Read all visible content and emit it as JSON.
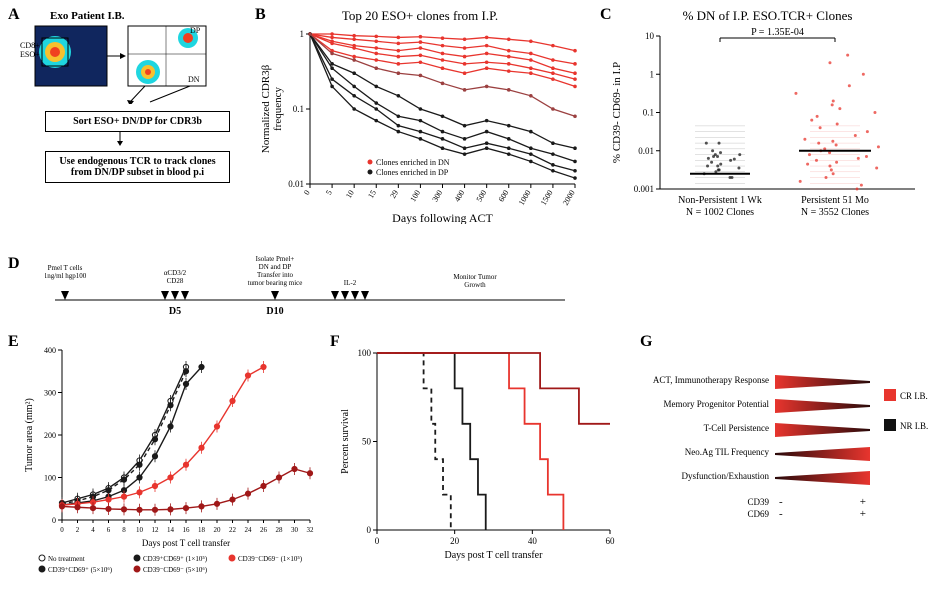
{
  "panelA": {
    "label": "A",
    "header": "Exo Patient I.B.",
    "flow_labels": {
      "cd8_eso": "CD8+\nESO+",
      "dp": "DP",
      "dn": "DN"
    },
    "box1": "Sort ESO+ DN/DP for CDR3b",
    "box2": "Use endogenous TCR to track clones from DN/DP subset in blood p.i",
    "flow_bg": "#061a4a",
    "flow_hot": "#f04020",
    "flow_warm": "#f7c02e",
    "flow_cyan": "#1fd6e0"
  },
  "panelB": {
    "label": "B",
    "title": "Top 20 ESO+ clones from I.P.",
    "ylabel": "Normalized CDR3β\nfrequency",
    "xlabel": "Days following ACT",
    "legend": {
      "dn": "Clones enriched in DN",
      "dp": "Clones enriched in DP"
    },
    "color_dn": "#e8352e",
    "color_dp": "#1a1a1a",
    "color_mix": "#9b4040",
    "xticks": [
      "0",
      "5",
      "10",
      "15",
      "29",
      "100",
      "300",
      "400",
      "500",
      "600",
      "1000",
      "1500",
      "2000"
    ],
    "yticks": [
      "1",
      "0.1",
      "0.01"
    ],
    "dn_lines": [
      [
        1,
        1,
        0.95,
        0.93,
        0.9,
        0.92,
        0.88,
        0.85,
        0.9,
        0.85,
        0.8,
        0.7,
        0.6
      ],
      [
        1,
        0.9,
        0.85,
        0.8,
        0.75,
        0.78,
        0.7,
        0.65,
        0.7,
        0.6,
        0.55,
        0.45,
        0.4
      ],
      [
        1,
        0.8,
        0.7,
        0.65,
        0.6,
        0.65,
        0.55,
        0.5,
        0.55,
        0.5,
        0.45,
        0.35,
        0.3
      ],
      [
        1,
        0.75,
        0.65,
        0.55,
        0.5,
        0.52,
        0.45,
        0.4,
        0.42,
        0.4,
        0.35,
        0.3,
        0.25
      ],
      [
        1,
        0.6,
        0.5,
        0.45,
        0.4,
        0.42,
        0.35,
        0.3,
        0.35,
        0.32,
        0.3,
        0.25,
        0.2
      ]
    ],
    "dp_lines": [
      [
        1,
        0.4,
        0.3,
        0.2,
        0.15,
        0.1,
        0.08,
        0.06,
        0.07,
        0.06,
        0.05,
        0.035,
        0.03
      ],
      [
        1,
        0.35,
        0.2,
        0.12,
        0.08,
        0.07,
        0.05,
        0.04,
        0.05,
        0.04,
        0.03,
        0.025,
        0.02
      ],
      [
        1,
        0.25,
        0.15,
        0.1,
        0.06,
        0.05,
        0.04,
        0.03,
        0.035,
        0.03,
        0.025,
        0.018,
        0.015
      ],
      [
        1,
        0.2,
        0.1,
        0.07,
        0.05,
        0.04,
        0.03,
        0.025,
        0.03,
        0.025,
        0.02,
        0.015,
        0.012
      ]
    ],
    "mix_lines": [
      [
        1,
        0.55,
        0.45,
        0.35,
        0.3,
        0.28,
        0.22,
        0.18,
        0.2,
        0.18,
        0.15,
        0.1,
        0.08
      ]
    ]
  },
  "panelC": {
    "label": "C",
    "title": "% DN of I.P. ESO.TCR+ Clones",
    "ylabel": "% CD39- CD69- in I.P",
    "pval": "P = 1.35E-04",
    "cat1": "Non-Persistent 1 Wk",
    "cat1_n": "N = 1002 Clones",
    "cat2": "Persistent 51 Mo",
    "cat2_n": "N = 3552 Clones",
    "yticks": [
      "10",
      "1",
      "0.1",
      "0.01",
      "0.001"
    ],
    "c1_color": "#1a1a1a",
    "c2_color": "#e8352e",
    "c1_strip": [
      -2.7,
      -2.7,
      -2.6,
      -2.55,
      -2.5,
      -2.5,
      -2.45,
      -2.4,
      -2.4,
      -2.35,
      -2.3,
      -2.25,
      -2.22,
      -2.2,
      -2.15,
      -2.15,
      -2.1,
      -2.1,
      -2.05,
      -2.0,
      -1.8,
      -1.8
    ],
    "c2_strip": [
      -3,
      -2.9,
      -2.8,
      -2.7,
      -2.6,
      -2.5,
      -2.45,
      -2.4,
      -2.35,
      -2.3,
      -2.25,
      -2.2,
      -2.15,
      -2.1,
      -2.05,
      -2,
      -1.95,
      -1.9,
      -1.85,
      -1.8,
      -1.75,
      -1.7,
      -1.6,
      -1.5,
      -1.4,
      -1.3,
      -1.2,
      -1.1,
      -1,
      -0.9,
      -0.8,
      -0.7,
      -0.5,
      -0.3,
      0,
      0.3,
      0.5
    ],
    "c1_median": -2.6,
    "c2_median": -2.0
  },
  "panelD": {
    "label": "D",
    "left": "Pmel T cells\n1ng/ml hgp100",
    "mid1": "αCD3/2\nCD28",
    "mid2": "Isolate Pmel+\nDN and DP\nTransfer into\ntumor bearing mice",
    "il2": "IL-2",
    "right": "Monitor Tumor\nGrowth",
    "d5": "D5",
    "d10": "D10"
  },
  "panelE": {
    "label": "E",
    "ylabel": "Tumor area (mm²)",
    "xlabel": "Days post T cell transfer",
    "yticks": [
      "0",
      "100",
      "200",
      "300",
      "400"
    ],
    "xticks": [
      "0",
      "2",
      "4",
      "6",
      "8",
      "10",
      "12",
      "14",
      "16",
      "18",
      "20",
      "22",
      "24",
      "26",
      "28",
      "30",
      "32"
    ],
    "series": {
      "no_tx": {
        "label": "No treatment",
        "color": "#1a1a1a",
        "dash": false,
        "fill": "#ffffff",
        "y": [
          40,
          50,
          60,
          75,
          100,
          140,
          200,
          280,
          360
        ]
      },
      "dp_5e6": {
        "label": "CD39⁺CD69⁺ (5×10⁶)",
        "color": "#1a1a1a",
        "dash": false,
        "fill": "#1a1a1a",
        "y": [
          35,
          40,
          45,
          55,
          70,
          100,
          150,
          220,
          320,
          360
        ]
      },
      "dp_1e5": {
        "label": "CD39⁺CD69⁺ (1×10⁵)",
        "color": "#1a1a1a",
        "dash": true,
        "fill": "#1a1a1a",
        "y": [
          38,
          45,
          55,
          70,
          95,
          130,
          190,
          270,
          350
        ]
      },
      "dn_1e5": {
        "label": "CD39⁻CD69⁻ (1×10⁵)",
        "color": "#e8352e",
        "dash": false,
        "fill": "#e8352e",
        "y": [
          35,
          38,
          42,
          48,
          55,
          65,
          80,
          100,
          130,
          170,
          220,
          280,
          340,
          360
        ]
      },
      "dn_5e6": {
        "label": "CD39⁻CD69⁻ (5×10⁶)",
        "color": "#a01818",
        "dash": false,
        "fill": "#a01818",
        "y": [
          32,
          30,
          28,
          26,
          25,
          24,
          24,
          25,
          28,
          32,
          38,
          48,
          62,
          80,
          100,
          120,
          110
        ]
      }
    }
  },
  "panelF": {
    "label": "F",
    "ylabel": "Percent survival",
    "xlabel": "Days post T cell transfer",
    "yticks": [
      "0",
      "50",
      "100"
    ],
    "xticks": [
      "0",
      "20",
      "40",
      "60"
    ],
    "curves": {
      "no_tx": {
        "color": "#1a1a1a",
        "dash": true,
        "steps": [
          [
            0,
            100
          ],
          [
            12,
            100
          ],
          [
            12,
            80
          ],
          [
            14,
            80
          ],
          [
            14,
            60
          ],
          [
            15,
            60
          ],
          [
            15,
            40
          ],
          [
            17,
            40
          ],
          [
            17,
            20
          ],
          [
            19,
            20
          ],
          [
            19,
            0
          ]
        ]
      },
      "dp": {
        "color": "#1a1a1a",
        "dash": false,
        "steps": [
          [
            0,
            100
          ],
          [
            20,
            100
          ],
          [
            20,
            80
          ],
          [
            22,
            80
          ],
          [
            22,
            60
          ],
          [
            24,
            60
          ],
          [
            24,
            40
          ],
          [
            26,
            40
          ],
          [
            26,
            20
          ],
          [
            28,
            20
          ],
          [
            28,
            0
          ]
        ]
      },
      "dn_lo": {
        "color": "#e8352e",
        "dash": false,
        "steps": [
          [
            0,
            100
          ],
          [
            34,
            100
          ],
          [
            34,
            80
          ],
          [
            38,
            80
          ],
          [
            38,
            60
          ],
          [
            42,
            60
          ],
          [
            42,
            40
          ],
          [
            44,
            40
          ],
          [
            44,
            20
          ],
          [
            48,
            20
          ],
          [
            48,
            0
          ]
        ]
      },
      "dn_hi": {
        "color": "#a01818",
        "dash": false,
        "steps": [
          [
            0,
            100
          ],
          [
            42,
            100
          ],
          [
            42,
            80
          ],
          [
            52,
            80
          ],
          [
            52,
            60
          ],
          [
            60,
            60
          ]
        ]
      }
    }
  },
  "panelG": {
    "label": "G",
    "rows": [
      "ACT, Immunotherapy Response",
      "Memory Progenitor Potential",
      "T-Cell Persistence",
      "Neo.Ag TIL Frequency",
      "Dysfunction/Exhaustion"
    ],
    "axis_row1": "CD39",
    "axis_row2": "CD69",
    "legend": {
      "cr": "CR I.B.",
      "nr": "NR I.B."
    },
    "grad_red_left": "#e8352e",
    "grad_red_right": "#2a0a0a",
    "grad_blk_left": "#111111",
    "grad_blk_right": "#444444",
    "minus": "-",
    "plus": "+"
  }
}
